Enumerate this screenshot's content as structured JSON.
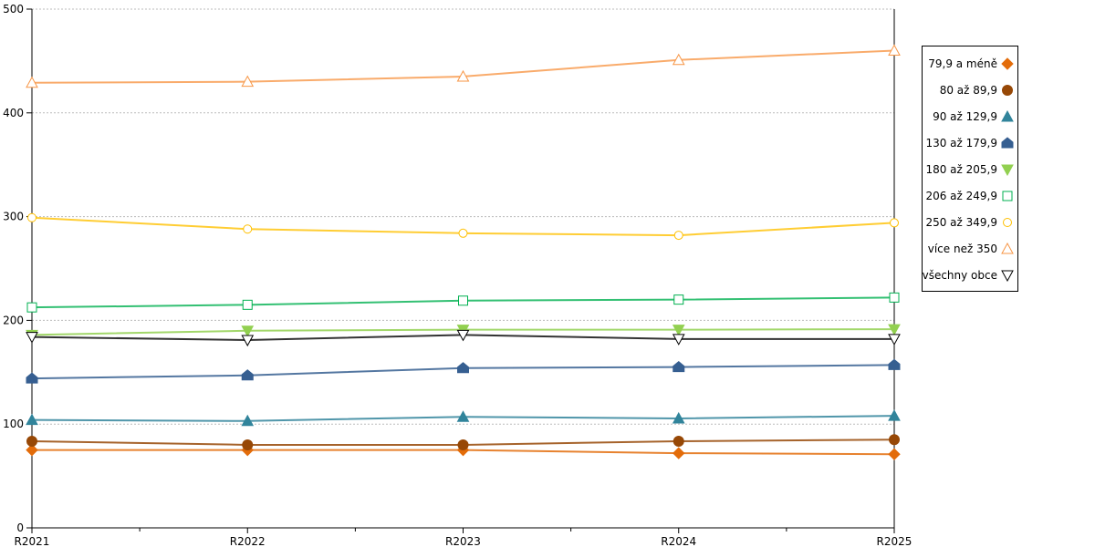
{
  "chart_data": {
    "type": "line",
    "title": "",
    "xlabel": "",
    "ylabel": "",
    "categories": [
      "R2021",
      "R2022",
      "R2023",
      "R2024",
      "R2025"
    ],
    "ylim": [
      0,
      500
    ],
    "yticks": [
      "0",
      "100",
      "200",
      "300",
      "400",
      "500"
    ],
    "grid": true,
    "legend_position": "right",
    "series": [
      {
        "name": "79,9 a méně",
        "color": "#e36c0a",
        "marker": "diamond",
        "filled": true,
        "values": [
          75,
          75,
          75,
          72,
          71
        ]
      },
      {
        "name": "80 až 89,9",
        "color": "#974806",
        "marker": "circle",
        "filled": true,
        "values": [
          83.5,
          80,
          80,
          83.5,
          85
        ]
      },
      {
        "name": "90 až 129,9",
        "color": "#31849b",
        "marker": "triangle-up",
        "filled": true,
        "values": [
          104,
          103,
          107,
          105.5,
          108
        ]
      },
      {
        "name": "130 až 179,9",
        "color": "#365f91",
        "marker": "pentagon",
        "filled": true,
        "values": [
          144,
          147,
          154,
          155,
          157
        ]
      },
      {
        "name": "180 až 205,9",
        "color": "#92d050",
        "marker": "triangle-down",
        "filled": true,
        "values": [
          186,
          190,
          191,
          191,
          191.5
        ]
      },
      {
        "name": "206 až 249,9",
        "color": "#00b050",
        "marker": "square",
        "filled": false,
        "values": [
          212.5,
          215,
          219,
          220,
          222
        ]
      },
      {
        "name": "250 až 349,9",
        "color": "#ffc000",
        "marker": "circle",
        "filled": false,
        "values": [
          299,
          288,
          284,
          282,
          294
        ]
      },
      {
        "name": "více než 350",
        "color": "#f79646",
        "marker": "triangle-up",
        "filled": false,
        "values": [
          429,
          430,
          435,
          451,
          460
        ]
      },
      {
        "name": "všechny obce",
        "color": "#000000",
        "marker": "triangle-down",
        "filled": false,
        "values": [
          184,
          181,
          186,
          182,
          182
        ]
      }
    ]
  }
}
